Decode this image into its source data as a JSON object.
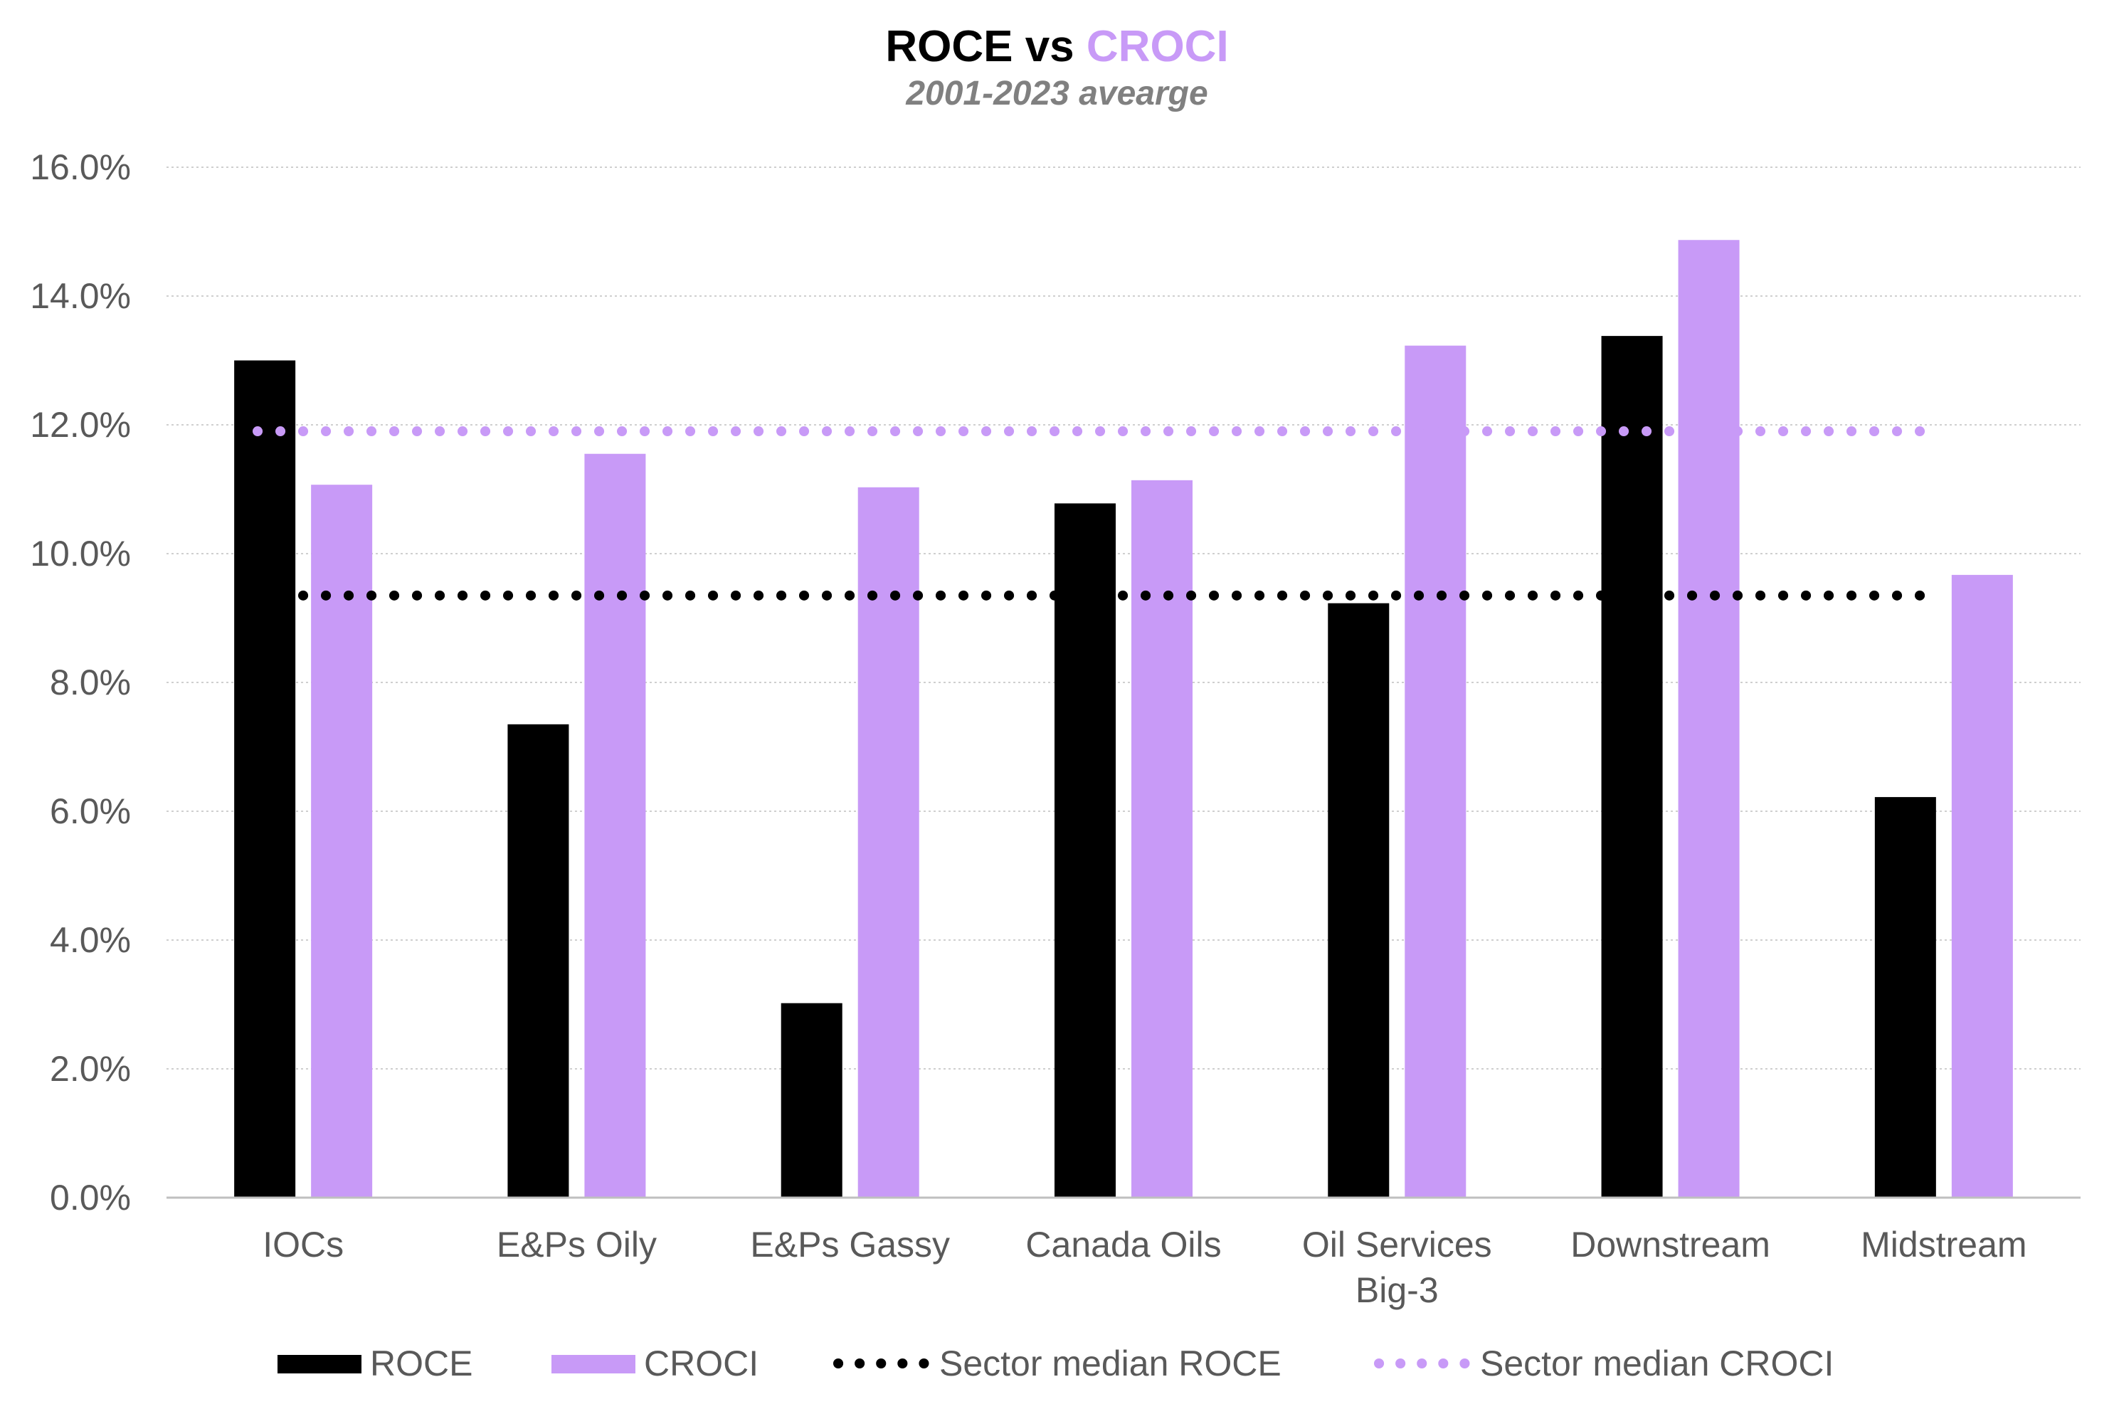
{
  "chart_data": {
    "type": "bar",
    "title_parts": {
      "left": "ROCE",
      "mid": "vs",
      "right": "CROCI"
    },
    "subtitle": "2001-2023 avearge",
    "categories": [
      [
        "IOCs"
      ],
      [
        "E&Ps Oily"
      ],
      [
        "E&Ps Gassy"
      ],
      [
        "Canada Oils"
      ],
      [
        "Oil Services",
        "Big-3"
      ],
      [
        "Downstream"
      ],
      [
        "Midstream"
      ]
    ],
    "series": [
      {
        "name": "ROCE",
        "values": [
          13.0,
          7.35,
          3.02,
          10.78,
          9.23,
          13.38,
          6.22
        ],
        "color": "#000000"
      },
      {
        "name": "CROCI",
        "values": [
          11.07,
          11.55,
          11.03,
          11.14,
          13.23,
          14.87,
          9.67
        ],
        "color": "#c89af7"
      }
    ],
    "reference_lines": [
      {
        "name": "Sector median ROCE",
        "value": 9.35,
        "color": "#000000"
      },
      {
        "name": "Sector median CROCI",
        "value": 11.9,
        "color": "#c89af7"
      }
    ],
    "yaxis": {
      "ticks": [
        0,
        2,
        4,
        6,
        8,
        10,
        12,
        14,
        16
      ],
      "ylim": [
        0,
        16
      ],
      "format": "percent_1dp"
    },
    "grid": true,
    "legend": "bottom",
    "colors": {
      "grid": "#cfcfcf",
      "axis": "#bfbfbf",
      "tick_text": "#595959"
    }
  }
}
